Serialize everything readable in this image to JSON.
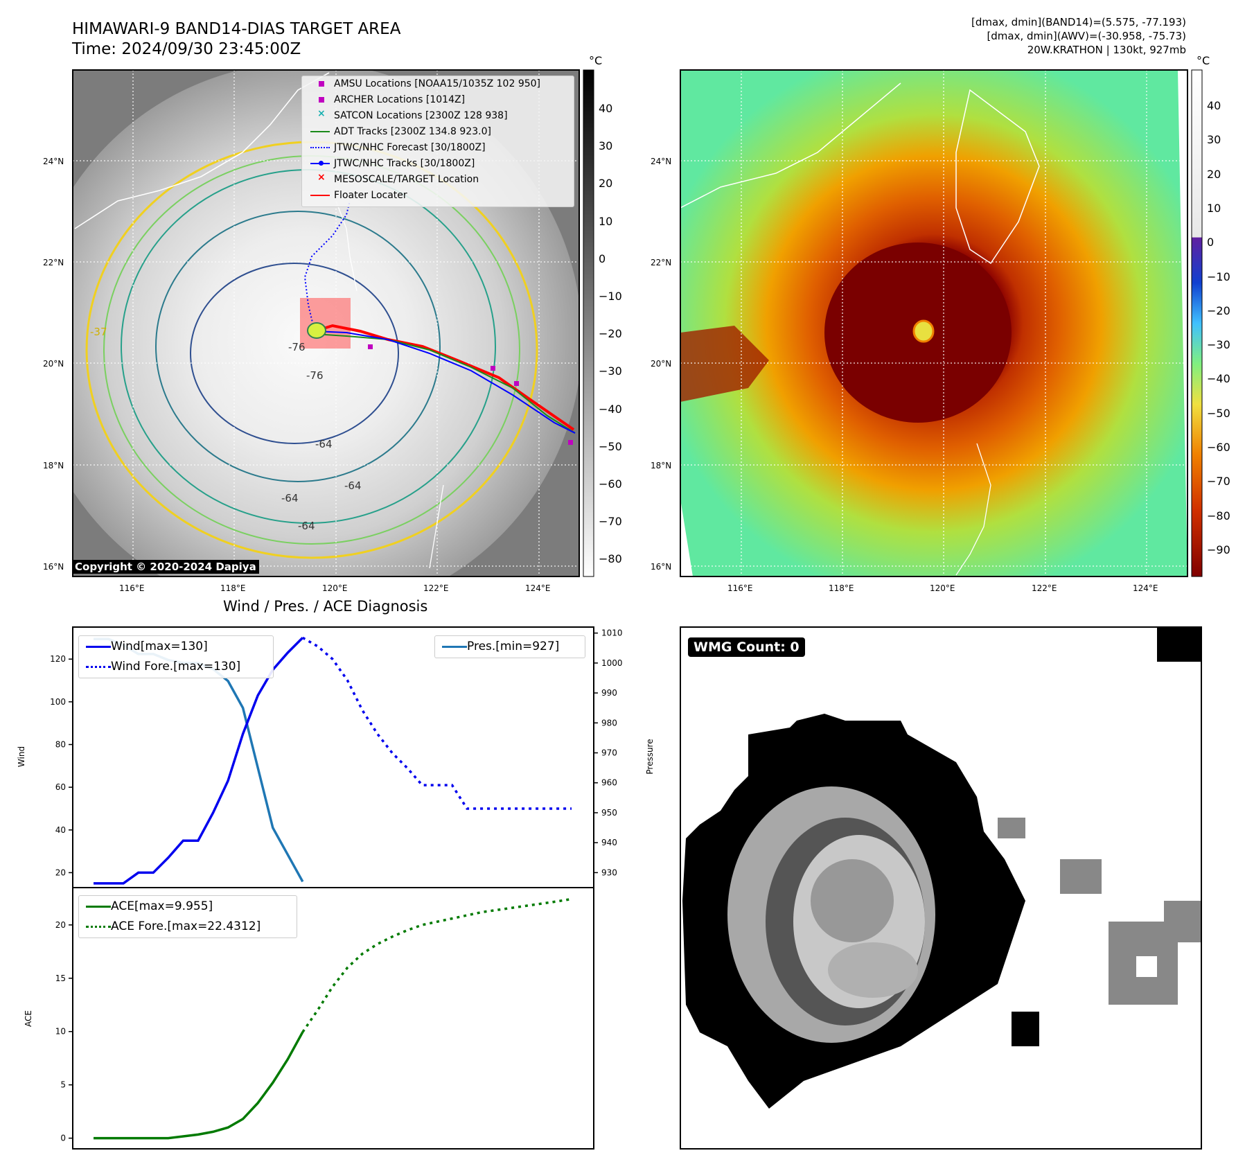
{
  "header": {
    "title_line1": "HIMAWARI-9 BAND14-DIAS TARGET AREA",
    "title_line2": "Time: 2024/09/30 23:45:00Z",
    "info_line1": "[dmax, dmin](BAND14)=(5.575, -77.193)",
    "info_line2": "[dmax, dmin](AWV)=(-30.958, -75.73)",
    "info_line3": "20W.KRATHON | 130kt, 927mb"
  },
  "map_axes": {
    "lat_labels": [
      "24°N",
      "22°N",
      "20°N",
      "18°N",
      "16°N"
    ],
    "lon_labels": [
      "116°E",
      "118°E",
      "120°E",
      "122°E",
      "124°E"
    ]
  },
  "left_map": {
    "unit": "°C",
    "colorbar_ticks": [
      "40",
      "30",
      "20",
      "10",
      "0",
      "−10",
      "−20",
      "−30",
      "−40",
      "−50",
      "−60",
      "−70",
      "−80"
    ],
    "contour_labels": [
      "-76",
      "-76",
      "-64",
      "-64",
      "-64",
      "-64",
      "-37"
    ],
    "legend": [
      {
        "label": "AMSU Locations [NOAA15/1035Z 102 950]",
        "icon": "magenta-square-marker",
        "color": "#c000c0"
      },
      {
        "label": "ARCHER Locations [1014Z]",
        "icon": "magenta-square-marker",
        "color": "#c000c0"
      },
      {
        "label": "SATCON Locations [2300Z 128 938]",
        "icon": "cyan-x-marker",
        "color": "#18b0b0"
      },
      {
        "label": "ADT Tracks [2300Z 134.8 923.0]",
        "icon": "green-line",
        "color": "#1a8a1a"
      },
      {
        "label": "JTWC/NHC Forecast [30/1800Z]",
        "icon": "blue-dotted-line",
        "color": "#0000ff"
      },
      {
        "label": "JTWC/NHC Tracks [30/1800Z]",
        "icon": "blue-line-dot",
        "color": "#0000ff"
      },
      {
        "label": "MESOSCALE/TARGET Location",
        "icon": "red-x-marker",
        "color": "#ff0000"
      },
      {
        "label": "Floater Locater",
        "icon": "red-line",
        "color": "#ff0000"
      }
    ],
    "copyright": "Copyright © 2020-2024 Dapiya"
  },
  "right_map": {
    "unit": "°C",
    "colorbar_ticks": [
      "40",
      "30",
      "20",
      "10",
      "0",
      "−10",
      "−20",
      "−30",
      "−40",
      "−50",
      "−60",
      "−70",
      "−80",
      "−90"
    ]
  },
  "diagnosis": {
    "title": "Wind / Pres. / ACE Diagnosis",
    "wind_ylabel": "Wind",
    "pres_ylabel": "Pressure",
    "ace_ylabel": "ACE",
    "wind_legend": "Wind[max=130]",
    "wind_fore_legend": "Wind Fore.[max=130]",
    "pres_legend": "Pres.[min=927]",
    "ace_legend": "ACE[max=9.955]",
    "ace_fore_legend": "ACE Fore.[max=22.4312]"
  },
  "wmg": {
    "label": "WMG Count: 0"
  },
  "colors": {
    "wind": "#0000ee",
    "pressure": "#1f77b4",
    "ace": "#007a00",
    "track_red": "#ff0000"
  },
  "chart_data": [
    {
      "type": "line",
      "title": "Wind / Pres. / ACE Diagnosis",
      "ylabel": "Wind",
      "ylim": [
        13,
        135
      ],
      "y_ticks": [
        20,
        40,
        60,
        80,
        100,
        120
      ],
      "series": [
        {
          "name": "Wind[max=130]",
          "x": [
            0,
            1,
            2,
            3,
            4,
            5,
            6,
            7,
            8,
            9,
            10,
            11,
            12,
            13,
            14
          ],
          "values": [
            15,
            15,
            15,
            20,
            20,
            27,
            35,
            35,
            48,
            63,
            85,
            103,
            115,
            123,
            130
          ]
        },
        {
          "name": "Wind Fore.[max=130]",
          "x": [
            14,
            15,
            16,
            17,
            18,
            19,
            20,
            21,
            22,
            23,
            24,
            25,
            26,
            27,
            28,
            29,
            30,
            31,
            32
          ],
          "values": [
            130,
            126,
            120,
            110,
            96,
            85,
            76,
            69,
            61,
            61,
            61,
            50,
            50,
            50,
            50,
            50,
            50,
            50,
            50
          ]
        }
      ]
    },
    {
      "type": "line",
      "ylabel": "Pressure",
      "ylim": [
        925,
        1012
      ],
      "y_ticks": [
        930,
        940,
        950,
        960,
        970,
        980,
        990,
        1000,
        1010
      ],
      "series": [
        {
          "name": "Pres.[min=927]",
          "x": [
            0,
            1,
            2,
            3,
            4,
            5,
            6,
            7,
            8,
            9,
            10,
            11,
            12,
            13,
            14
          ],
          "values": [
            1008,
            1008,
            1006,
            1003,
            1003,
            1001,
            1000,
            1000,
            998,
            994,
            985,
            965,
            945,
            936,
            927
          ]
        }
      ]
    },
    {
      "type": "line",
      "ylabel": "ACE",
      "ylim": [
        -1,
        23.5
      ],
      "y_ticks": [
        0,
        5,
        10,
        15,
        20
      ],
      "series": [
        {
          "name": "ACE[max=9.955]",
          "x": [
            0,
            1,
            2,
            3,
            4,
            5,
            6,
            7,
            8,
            9,
            10,
            11,
            12,
            13,
            14
          ],
          "values": [
            0,
            0,
            0,
            0,
            0,
            0,
            0.17,
            0.34,
            0.6,
            1.0,
            1.8,
            3.3,
            5.2,
            7.4,
            9.955
          ]
        },
        {
          "name": "ACE Fore.[max=22.4312]",
          "x": [
            14,
            15,
            16,
            17,
            18,
            19,
            20,
            21,
            22,
            23,
            24,
            25,
            26,
            27,
            28,
            29,
            30,
            31,
            32
          ],
          "values": [
            9.955,
            12.0,
            14.2,
            16.0,
            17.3,
            18.2,
            18.9,
            19.5,
            20.0,
            20.3,
            20.6,
            20.9,
            21.2,
            21.4,
            21.6,
            21.8,
            22.0,
            22.2,
            22.43
          ]
        }
      ]
    }
  ]
}
